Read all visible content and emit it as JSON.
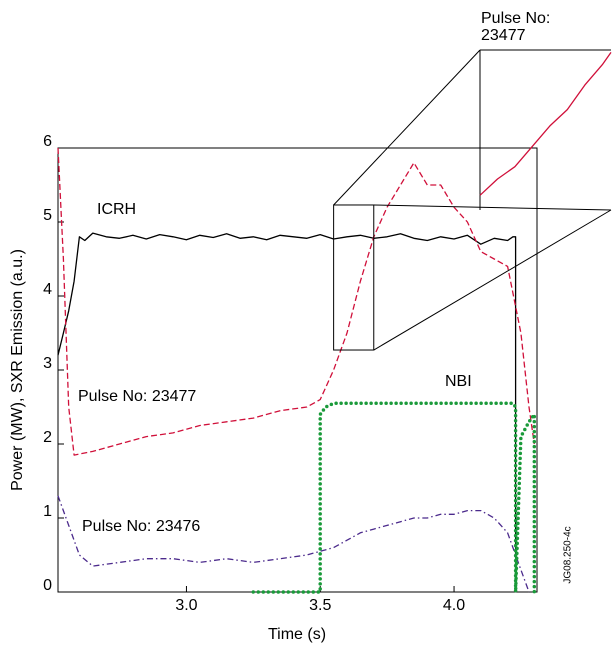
{
  "chart_data": [
    {
      "type": "line",
      "xlabel": "Time (s)",
      "ylabel": "Power (MW), SXR Emission (a.u.)",
      "xlim": [
        2.52,
        4.31
      ],
      "ylim": [
        0,
        6
      ],
      "xticks": [
        {
          "value": 3,
          "label": "3.0"
        },
        3.5,
        {
          "value": 4,
          "label": "4.0"
        }
      ],
      "yticks": [
        0,
        1,
        2,
        3,
        4,
        5,
        6
      ],
      "watermark": "JG08.250-4c",
      "series": [
        {
          "name": "ICRH",
          "color": "#000000",
          "style": "solid",
          "x": [
            2.52,
            2.54,
            2.56,
            2.58,
            2.6,
            2.62,
            2.65,
            2.7,
            2.75,
            2.8,
            2.85,
            2.9,
            2.95,
            3.0,
            3.05,
            3.1,
            3.15,
            3.2,
            3.25,
            3.3,
            3.35,
            3.4,
            3.45,
            3.5,
            3.55,
            3.6,
            3.65,
            3.7,
            3.75,
            3.8,
            3.85,
            3.9,
            3.95,
            4.0,
            4.05,
            4.1,
            4.15,
            4.2,
            4.22,
            4.23,
            4.23
          ],
          "values": [
            3.2,
            3.5,
            3.8,
            4.2,
            4.8,
            4.75,
            4.85,
            4.8,
            4.78,
            4.82,
            4.77,
            4.83,
            4.8,
            4.76,
            4.82,
            4.79,
            4.84,
            4.78,
            4.8,
            4.76,
            4.82,
            4.8,
            4.78,
            4.83,
            4.77,
            4.8,
            4.82,
            4.78,
            4.8,
            4.84,
            4.78,
            4.75,
            4.8,
            4.77,
            4.82,
            4.7,
            4.78,
            4.75,
            4.8,
            4.8,
            0
          ]
        },
        {
          "name": "Pulse No: 23477",
          "color": "#d0103a",
          "style": "dashed",
          "x": [
            2.52,
            2.54,
            2.56,
            2.58,
            2.65,
            2.75,
            2.85,
            2.95,
            3.05,
            3.15,
            3.25,
            3.35,
            3.45,
            3.5,
            3.55,
            3.6,
            3.65,
            3.7,
            3.75,
            3.8,
            3.85,
            3.9,
            3.95,
            4.0,
            4.05,
            4.1,
            4.15,
            4.2,
            4.25,
            4.28,
            4.3
          ],
          "values": [
            6,
            4.5,
            2.5,
            1.85,
            1.9,
            2.0,
            2.1,
            2.15,
            2.25,
            2.3,
            2.35,
            2.45,
            2.5,
            2.6,
            3.0,
            3.5,
            4.2,
            4.8,
            5.2,
            5.5,
            5.8,
            5.5,
            5.5,
            5.2,
            5.0,
            4.6,
            4.5,
            4.4,
            3.5,
            2.5,
            2.0
          ]
        },
        {
          "name": "Pulse No: 23476",
          "color": "#4b2a8c",
          "style": "dashdot",
          "x": [
            2.52,
            2.56,
            2.6,
            2.65,
            2.75,
            2.85,
            2.95,
            3.05,
            3.15,
            3.25,
            3.35,
            3.45,
            3.5,
            3.55,
            3.6,
            3.65,
            3.7,
            3.75,
            3.8,
            3.85,
            3.9,
            3.95,
            4.0,
            4.05,
            4.1,
            4.15,
            4.2,
            4.25,
            4.28
          ],
          "values": [
            1.3,
            0.9,
            0.5,
            0.35,
            0.4,
            0.45,
            0.45,
            0.4,
            0.45,
            0.4,
            0.45,
            0.5,
            0.55,
            0.6,
            0.7,
            0.8,
            0.85,
            0.9,
            0.95,
            1.0,
            1.0,
            1.05,
            1.05,
            1.1,
            1.1,
            1.0,
            0.8,
            0.3,
            0
          ]
        },
        {
          "name": "NBI",
          "color": "#1a9a3a",
          "style": "dotted",
          "x": [
            3.25,
            3.5,
            3.5,
            3.52,
            3.55,
            3.6,
            4.0,
            4.22,
            4.23,
            4.23,
            4.25,
            4.28,
            4.3,
            4.3
          ],
          "values": [
            0,
            0,
            2.4,
            2.5,
            2.55,
            2.55,
            2.55,
            2.55,
            2.5,
            0,
            2.1,
            2.3,
            2.4,
            0
          ]
        }
      ]
    },
    {
      "type": "line",
      "label_lines": [
        "Pulse No:",
        "23477"
      ],
      "xlim": [
        3.55,
        3.7
      ],
      "ylim": [
        3.27,
        5.23
      ],
      "series": [
        {
          "color": "#d0103a",
          "style": "solid",
          "x": [
            3.55,
            3.57,
            3.59,
            3.61,
            3.63,
            3.65,
            3.67,
            3.69,
            3.7
          ],
          "values": [
            3.45,
            3.65,
            3.8,
            4.05,
            4.3,
            4.5,
            4.8,
            5.05,
            5.2
          ]
        }
      ]
    }
  ]
}
